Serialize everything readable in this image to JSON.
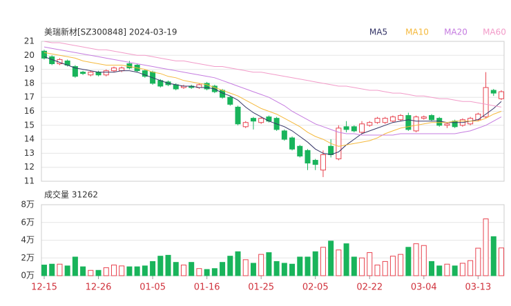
{
  "chart_data": {
    "type": "candlestick",
    "title": "美瑞新材[SZ300848] 2024-03-19",
    "volume_title": "成交量 31262",
    "categories": [
      "12-15",
      null,
      null,
      null,
      null,
      null,
      null,
      "12-26",
      null,
      null,
      null,
      null,
      null,
      null,
      "01-05",
      null,
      null,
      null,
      null,
      null,
      null,
      "01-16",
      null,
      null,
      null,
      null,
      null,
      null,
      "01-25",
      null,
      null,
      null,
      null,
      null,
      null,
      "02-05",
      null,
      null,
      null,
      null,
      null,
      null,
      "02-22",
      null,
      null,
      null,
      null,
      null,
      null,
      "03-04",
      null,
      null,
      null,
      null,
      null,
      null,
      "03-13",
      null,
      null,
      null
    ],
    "open": [
      20.3,
      19.9,
      19.4,
      19.6,
      19.2,
      18.8,
      18.6,
      18.8,
      18.6,
      18.9,
      18.9,
      19.4,
      19.3,
      18.9,
      18.8,
      18.2,
      18.1,
      17.9,
      17.7,
      17.8,
      17.7,
      18.0,
      17.8,
      17.5,
      17.0,
      16.3,
      14.9,
      15.5,
      15.2,
      15.6,
      15.5,
      14.6,
      14.1,
      13.5,
      13.2,
      12.5,
      11.8,
      13.5,
      12.6,
      14.9,
      14.9,
      14.5,
      15.0,
      15.2,
      15.2,
      15.3,
      15.4,
      15.7,
      14.6,
      15.5,
      15.7,
      15.5,
      15.0,
      15.3,
      15.0,
      15.1,
      15.4,
      15.6,
      17.5,
      16.9
    ],
    "high": [
      20.4,
      20.0,
      19.8,
      19.7,
      19.3,
      18.9,
      18.9,
      18.9,
      19.0,
      19.2,
      19.2,
      19.6,
      19.4,
      19.0,
      18.9,
      18.3,
      18.2,
      18.0,
      17.9,
      17.9,
      18.0,
      18.1,
      17.9,
      17.6,
      17.1,
      16.4,
      15.3,
      15.6,
      15.6,
      15.7,
      15.6,
      14.7,
      14.2,
      13.6,
      13.3,
      12.6,
      13.2,
      14.0,
      15.0,
      15.3,
      15.0,
      15.3,
      15.3,
      15.6,
      15.6,
      15.7,
      15.8,
      15.9,
      15.7,
      15.7,
      15.8,
      15.6,
      15.2,
      15.4,
      15.5,
      15.6,
      15.9,
      18.8,
      17.6,
      17.5
    ],
    "low": [
      19.7,
      19.3,
      19.3,
      19.2,
      18.4,
      18.6,
      18.5,
      18.5,
      18.5,
      18.8,
      18.8,
      19.0,
      18.8,
      18.4,
      17.9,
      17.7,
      17.8,
      17.5,
      17.6,
      17.6,
      17.6,
      17.5,
      17.3,
      16.9,
      16.4,
      15.0,
      14.8,
      14.7,
      15.1,
      15.2,
      14.6,
      13.9,
      13.2,
      12.7,
      11.8,
      11.8,
      11.3,
      12.7,
      12.5,
      14.5,
      14.5,
      14.4,
      14.9,
      15.1,
      15.1,
      15.2,
      15.3,
      14.6,
      14.5,
      15.4,
      15.3,
      14.9,
      14.8,
      14.8,
      14.9,
      15.0,
      15.3,
      15.5,
      17.1,
      16.8
    ],
    "close": [
      19.8,
      19.4,
      19.7,
      19.3,
      18.5,
      18.7,
      18.8,
      18.6,
      18.9,
      19.1,
      19.1,
      19.1,
      18.9,
      18.5,
      18.0,
      17.8,
      17.9,
      17.6,
      17.8,
      17.7,
      17.9,
      17.6,
      17.4,
      17.0,
      16.5,
      15.1,
      15.2,
      15.3,
      15.5,
      15.3,
      14.7,
      14.0,
      13.3,
      12.8,
      12.3,
      12.2,
      12.9,
      12.9,
      14.8,
      14.7,
      14.6,
      15.1,
      15.2,
      15.5,
      15.5,
      15.6,
      15.7,
      14.7,
      15.6,
      15.6,
      15.4,
      15.0,
      15.1,
      14.9,
      15.4,
      15.5,
      15.8,
      17.7,
      17.3,
      17.4
    ],
    "volume": [
      1.2,
      1.3,
      1.3,
      1.1,
      2.1,
      1.0,
      0.6,
      0.6,
      0.9,
      1.2,
      1.1,
      1.0,
      1.0,
      1.1,
      1.6,
      2.2,
      2.3,
      1.5,
      1.2,
      1.5,
      0.8,
      0.7,
      0.8,
      1.5,
      2.2,
      2.7,
      1.8,
      1.4,
      2.4,
      2.6,
      1.6,
      1.4,
      1.3,
      2.1,
      2.1,
      2.7,
      3.2,
      3.9,
      2.9,
      3.6,
      2.1,
      2.0,
      2.6,
      1.2,
      1.6,
      2.2,
      2.4,
      3.2,
      3.6,
      3.4,
      1.6,
      1.1,
      1.3,
      1.1,
      1.4,
      1.7,
      3.1,
      6.4,
      4.4,
      3.1262
    ],
    "up_color": "#e8424e",
    "down_color": "#19b45b",
    "series": [
      {
        "name": "MA5",
        "color": "#333366",
        "values": [
          19.9,
          19.7,
          19.5,
          19.3,
          19.1,
          19.0,
          18.9,
          18.8,
          18.8,
          18.8,
          18.9,
          18.9,
          18.8,
          18.6,
          18.4,
          18.2,
          18.0,
          17.9,
          17.8,
          17.8,
          17.7,
          17.7,
          17.6,
          17.3,
          17.1,
          16.8,
          16.3,
          15.9,
          15.6,
          15.3,
          15.1,
          14.9,
          14.6,
          14.2,
          13.8,
          13.3,
          13.0,
          12.9,
          13.1,
          13.6,
          14.0,
          14.4,
          14.6,
          14.8,
          15.0,
          15.2,
          15.3,
          15.4,
          15.3,
          15.3,
          15.3,
          15.3,
          15.2,
          15.2,
          15.2,
          15.3,
          15.4,
          15.8,
          16.2,
          16.7
        ]
      },
      {
        "name": "MA10",
        "color": "#f5b93c",
        "values": [
          20.2,
          20.1,
          20.0,
          19.9,
          19.8,
          19.6,
          19.5,
          19.4,
          19.3,
          19.3,
          19.3,
          19.2,
          19.1,
          19.0,
          18.8,
          18.7,
          18.5,
          18.4,
          18.2,
          18.1,
          18.0,
          17.9,
          17.7,
          17.5,
          17.3,
          17.1,
          16.8,
          16.5,
          16.2,
          16.0,
          15.8,
          15.5,
          15.2,
          14.9,
          14.5,
          14.2,
          14.0,
          13.7,
          13.5,
          13.6,
          13.7,
          13.8,
          13.9,
          14.1,
          14.4,
          14.6,
          14.8,
          14.9,
          15.0,
          15.1,
          15.2,
          15.2,
          15.2,
          15.3,
          15.3,
          15.3,
          15.3,
          15.5,
          15.8,
          16.0
        ]
      },
      {
        "name": "MA20",
        "color": "#c57be0",
        "values": [
          20.6,
          20.5,
          20.4,
          20.3,
          20.2,
          20.1,
          20.0,
          19.9,
          19.8,
          19.7,
          19.6,
          19.5,
          19.4,
          19.3,
          19.2,
          19.1,
          19.0,
          18.9,
          18.8,
          18.7,
          18.6,
          18.5,
          18.4,
          18.2,
          18.0,
          17.8,
          17.6,
          17.4,
          17.2,
          17.0,
          16.7,
          16.4,
          16.0,
          15.7,
          15.4,
          15.1,
          14.9,
          14.7,
          14.5,
          14.4,
          14.4,
          14.3,
          14.3,
          14.3,
          14.3,
          14.3,
          14.4,
          14.4,
          14.4,
          14.4,
          14.4,
          14.4,
          14.4,
          14.4,
          14.5,
          14.6,
          14.8,
          15.0,
          15.3,
          15.6
        ]
      },
      {
        "name": "MA60",
        "color": "#f29ac8",
        "values": [
          21.0,
          20.9,
          20.9,
          20.8,
          20.7,
          20.6,
          20.5,
          20.4,
          20.4,
          20.3,
          20.2,
          20.1,
          20.0,
          20.0,
          19.9,
          19.8,
          19.7,
          19.6,
          19.6,
          19.5,
          19.4,
          19.3,
          19.2,
          19.2,
          19.1,
          19.0,
          18.9,
          18.8,
          18.8,
          18.7,
          18.6,
          18.5,
          18.4,
          18.3,
          18.2,
          18.1,
          18.0,
          17.9,
          17.8,
          17.8,
          17.7,
          17.6,
          17.5,
          17.5,
          17.4,
          17.3,
          17.3,
          17.2,
          17.1,
          17.1,
          17.0,
          16.9,
          16.9,
          16.8,
          16.7,
          16.7,
          16.6,
          16.5,
          16.4,
          16.3
        ]
      }
    ],
    "ylim": [
      11,
      21
    ],
    "yticks": [
      11,
      12,
      13,
      14,
      15,
      16,
      17,
      18,
      19,
      20,
      21
    ],
    "vlim": [
      0,
      8
    ],
    "vticks": [
      {
        "value": 0,
        "label": "0万"
      },
      {
        "value": 2,
        "label": "2万"
      },
      {
        "value": 4,
        "label": "4万"
      },
      {
        "value": 6,
        "label": "6万"
      },
      {
        "value": 8,
        "label": "8万"
      }
    ],
    "grid": true
  }
}
